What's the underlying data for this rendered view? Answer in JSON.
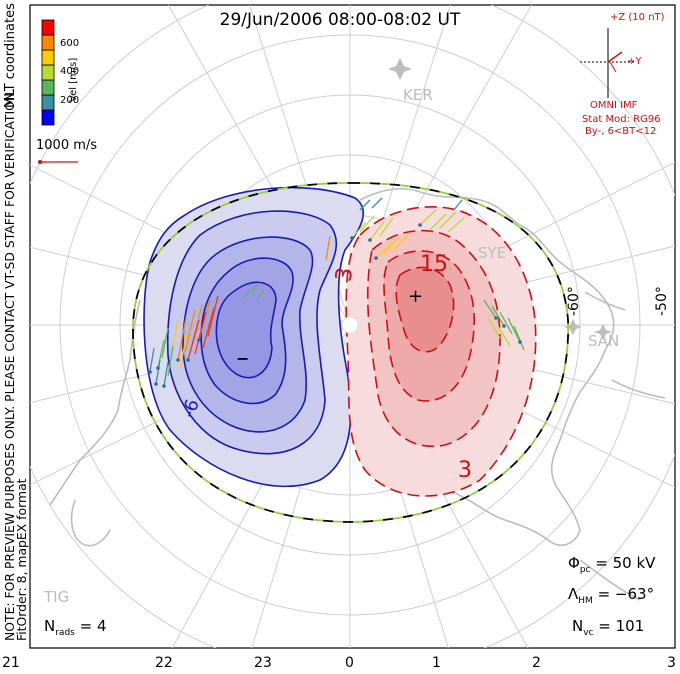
{
  "title": "29/Jun/2006 08:00-08:02 UT",
  "left_notes": {
    "coords": "MLT coordinates",
    "preview": "NOTE: FOR PREVIEW PURPOSES ONLY. PLEASE CONTACT VT-SD STAFF FOR VERIFICATION.",
    "fitorder": "FitOrder: 8, mapEX format"
  },
  "colorbar": {
    "label": "Vel [m/s]",
    "ticks": [
      "600",
      "400",
      "200"
    ],
    "colors": [
      "#0000ff",
      "#3a8fa0",
      "#5bb65b",
      "#b8dc2e",
      "#ffcc00",
      "#ff8800",
      "#ff0000"
    ]
  },
  "ref_vector": {
    "label": "1000 m/s"
  },
  "imf": {
    "bz_label": "+Z (10 nT)",
    "by_label": "+Y",
    "source": "OMNI IMF",
    "model": "Stat Mod: RG96",
    "bins": "By-, 6<BT<12"
  },
  "stations": [
    "KER",
    "SYE",
    "SAN",
    "TIG"
  ],
  "lat_labels": [
    "-60°",
    "-50°"
  ],
  "contour_labels": [
    "-6",
    "3",
    "15",
    "3"
  ],
  "extrema": {
    "min": "−",
    "max": "+"
  },
  "stats": {
    "phi_pc": {
      "sym": "Φ",
      "sub": "pc",
      "value": "= 50 kV"
    },
    "lambda_hm": {
      "sym": "Λ",
      "sub": "HM",
      "value": "= −63°"
    },
    "n_vc": {
      "sym": "N",
      "sub": "vc",
      "value": "= 101"
    },
    "n_rads": {
      "sym": "N",
      "sub": "rads",
      "value": "= 4"
    }
  },
  "x_ticks": [
    "21",
    "22",
    "23",
    "0",
    "1",
    "2",
    "3"
  ],
  "colors": {
    "negative": "#1a1ab4",
    "positive": "#cc1111",
    "boundary_a": "#000000",
    "boundary_b": "#8fd13f"
  }
}
